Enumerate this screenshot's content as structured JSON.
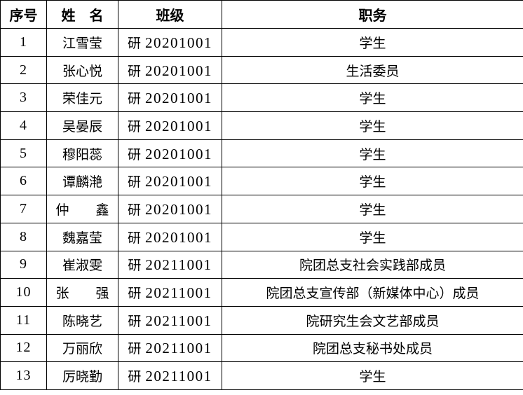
{
  "headers": {
    "index": "序号",
    "name": "姓　名",
    "class": "班级",
    "position": "职务"
  },
  "rows": [
    {
      "index": "1",
      "name": "江雪莹",
      "class_prefix": "研",
      "class_no": "20201001",
      "position": "学生"
    },
    {
      "index": "2",
      "name": "张心悦",
      "class_prefix": "研",
      "class_no": "20201001",
      "position": "生活委员"
    },
    {
      "index": "3",
      "name": "荣佳元",
      "class_prefix": "研",
      "class_no": "20201001",
      "position": "学生"
    },
    {
      "index": "4",
      "name": "吴晏辰",
      "class_prefix": "研",
      "class_no": "20201001",
      "position": "学生"
    },
    {
      "index": "5",
      "name": "穆阳蕊",
      "class_prefix": "研",
      "class_no": "20201001",
      "position": "学生"
    },
    {
      "index": "6",
      "name": "谭麟滟",
      "class_prefix": "研",
      "class_no": "20201001",
      "position": "学生"
    },
    {
      "index": "7",
      "name": "仲　　鑫",
      "class_prefix": "研",
      "class_no": "20201001",
      "position": "学生"
    },
    {
      "index": "8",
      "name": "魏嘉莹",
      "class_prefix": "研",
      "class_no": "20201001",
      "position": "学生"
    },
    {
      "index": "9",
      "name": "崔淑雯",
      "class_prefix": "研",
      "class_no": "20211001",
      "position": "院团总支社会实践部成员"
    },
    {
      "index": "10",
      "name": "张　　强",
      "class_prefix": "研",
      "class_no": "20211001",
      "position": "院团总支宣传部（新媒体中心）成员"
    },
    {
      "index": "11",
      "name": "陈晓艺",
      "class_prefix": "研",
      "class_no": "20211001",
      "position": "院研究生会文艺部成员"
    },
    {
      "index": "12",
      "name": "万丽欣",
      "class_prefix": "研",
      "class_no": "20211001",
      "position": "院团总支秘书处成员"
    },
    {
      "index": "13",
      "name": "厉晓勤",
      "class_prefix": "研",
      "class_no": "20211001",
      "position": "学生"
    }
  ]
}
